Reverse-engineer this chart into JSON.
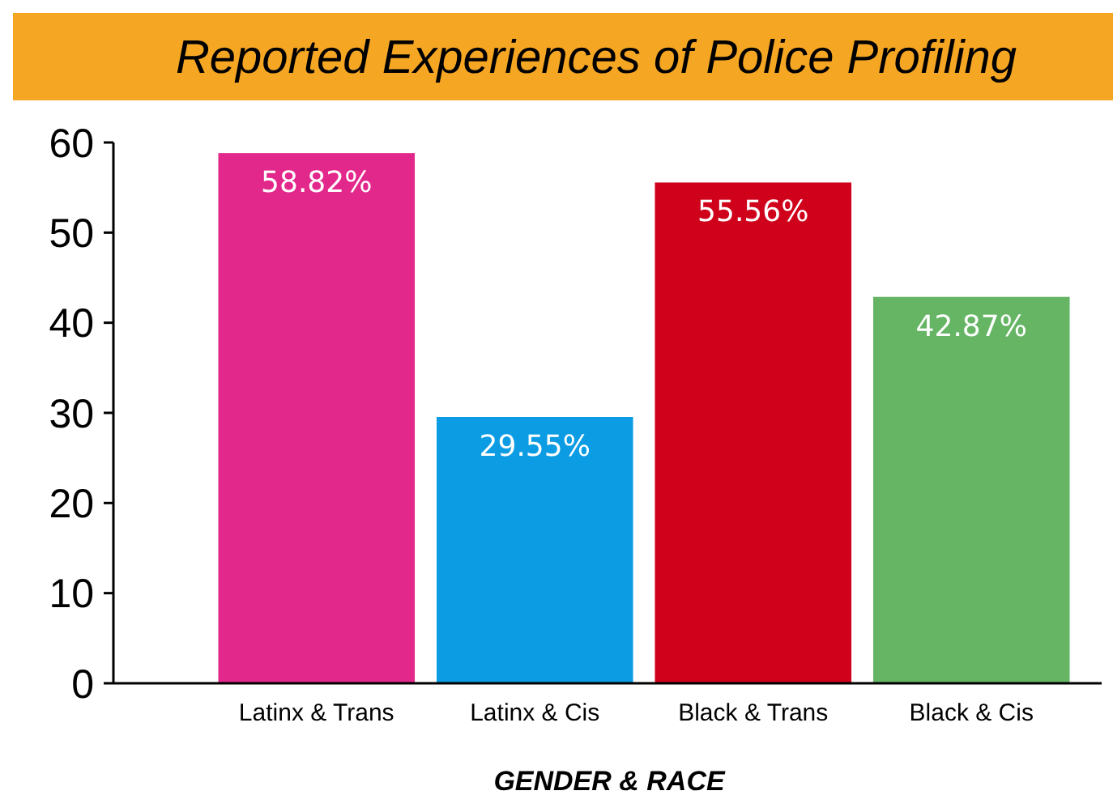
{
  "chart_data": {
    "type": "bar",
    "title": "Reported Experiences of Police Profiling",
    "xlabel": "GENDER & RACE",
    "categories": [
      "Latinx & Trans",
      "Latinx & Cis",
      "Black & Trans",
      "Black & Cis"
    ],
    "values": [
      58.82,
      29.55,
      55.56,
      42.87
    ],
    "colors": [
      "#e3288c",
      "#0b9ce3",
      "#d0021b",
      "#65b565"
    ],
    "value_labels": [
      "58.82%",
      "29.55%",
      "55.56%",
      "42.87%"
    ],
    "ylim": [
      0,
      60
    ],
    "yticks": [
      0,
      10,
      20,
      30,
      40,
      50,
      60
    ],
    "grid": false
  }
}
